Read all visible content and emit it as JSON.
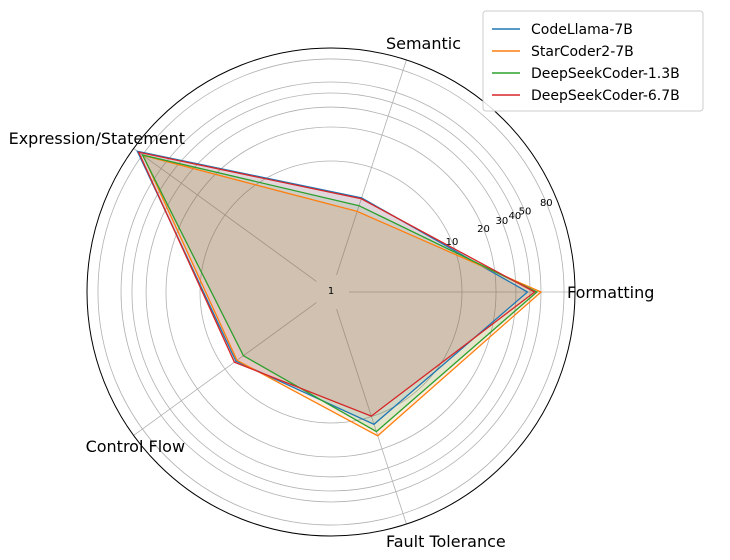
{
  "chart_data": {
    "type": "radar",
    "axes": [
      "Formatting",
      "Semantic",
      "Expression/Statement",
      "Control Flow",
      "Fault Tolerance"
    ],
    "radial_scale": "log",
    "radial_range": [
      1,
      100
    ],
    "radial_ticks": [
      1,
      10,
      20,
      30,
      40,
      50,
      80
    ],
    "grid": true,
    "legend_position": "top-right",
    "series": [
      {
        "name": "CodeLlama-7B",
        "color": "#1f77b4",
        "values": [
          38,
          5.2,
          91,
          7.6,
          11.8
        ]
      },
      {
        "name": "StarCoder2-7B",
        "color": "#ff7f0e",
        "values": [
          50,
          3.9,
          79,
          7.4,
          15.1
        ]
      },
      {
        "name": "DeepSeekCoder-1.3B",
        "color": "#2ca02c",
        "values": [
          46,
          4.4,
          80,
          6.3,
          13.8
        ]
      },
      {
        "name": "DeepSeekCoder-6.7B",
        "color": "#d62728",
        "values": [
          44,
          5.1,
          88,
          7.9,
          9.9
        ]
      }
    ]
  }
}
